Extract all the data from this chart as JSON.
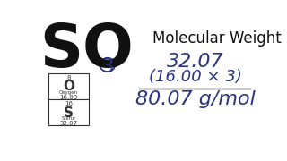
{
  "bg_color": "#ffffff",
  "title_text": "Molecular Weight",
  "formula_SO": "SO",
  "formula_sub": "3",
  "line1": "32.07",
  "line2": "(16.00 × 3)",
  "line3": "80.07 g/mol",
  "periodic_O_num": "8",
  "periodic_O_sym": "O",
  "periodic_O_name": "Oxygen",
  "periodic_O_mass": "16.00",
  "periodic_S_num": "16",
  "periodic_S_sym": "S",
  "periodic_S_name": "Sulfur",
  "periodic_S_mass": "32.07",
  "text_color": "#2a3580",
  "dark_color": "#111111",
  "table_color": "#333333",
  "so_fontsize": 48,
  "title_fontsize": 12,
  "calc1_fontsize": 16,
  "calc2_fontsize": 13,
  "calc3_fontsize": 16
}
